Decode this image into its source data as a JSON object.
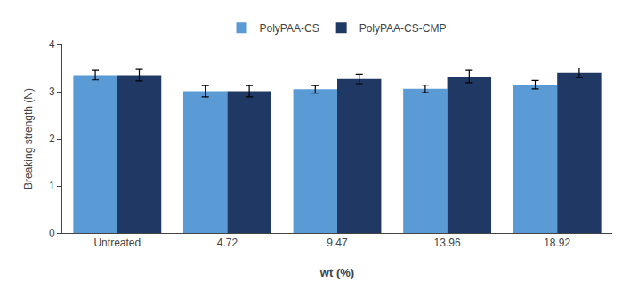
{
  "chart_data": {
    "type": "bar",
    "categories": [
      "Untreated",
      "4.72",
      "9.47",
      "13.96",
      "18.92"
    ],
    "series": [
      {
        "name": "PolyPAA-CS",
        "color": "#5b9bd5",
        "values": [
          3.35,
          3.01,
          3.05,
          3.06,
          3.15
        ],
        "errors": [
          0.1,
          0.12,
          0.08,
          0.08,
          0.09
        ]
      },
      {
        "name": "PolyPAA-CS-CMP",
        "color": "#1f3864",
        "values": [
          3.35,
          3.01,
          3.27,
          3.32,
          3.4
        ],
        "errors": [
          0.12,
          0.12,
          0.1,
          0.13,
          0.1
        ]
      }
    ],
    "xlabel": "wt (%)",
    "ylabel": "Breaking strength (N)",
    "ylim": [
      0,
      4
    ],
    "yticks": [
      0,
      1,
      2,
      3,
      4
    ],
    "grid": false,
    "legend": "top"
  }
}
